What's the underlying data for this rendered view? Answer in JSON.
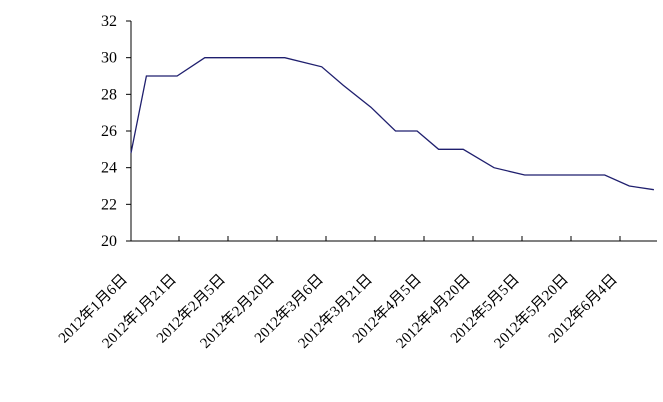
{
  "chart_data": {
    "type": "line",
    "title": "",
    "xlabel": "",
    "ylabel": "",
    "ylim": [
      20,
      32
    ],
    "yticks": [
      20,
      22,
      24,
      26,
      28,
      30,
      32
    ],
    "grid": false,
    "legend": "none",
    "line_color": "#1f1f6e",
    "x_tick_labels": [
      "2012年1月6日",
      "2012年1月21日",
      "2012年2月5日",
      "2012年2月20日",
      "2012年3月6日",
      "2012年3月21日",
      "2012年4月5日",
      "2012年4月20日",
      "2012年5月5日",
      "2012年5月20日",
      "2012年6月4日"
    ],
    "series": [
      {
        "x": [
          "2012-01-01",
          "2012-01-06",
          "2012-01-16",
          "2012-01-25",
          "2012-02-05",
          "2012-02-20",
          "2012-03-03",
          "2012-03-10",
          "2012-03-19",
          "2012-03-27",
          "2012-04-03",
          "2012-04-10",
          "2012-04-18",
          "2012-04-28",
          "2012-05-08",
          "2012-05-22",
          "2012-06-03",
          "2012-06-11",
          "2012-06-19"
        ],
        "values": [
          24.8,
          29.0,
          29.0,
          30.0,
          30.0,
          30.0,
          29.5,
          28.5,
          27.3,
          26.0,
          26.0,
          25.0,
          25.0,
          24.0,
          23.6,
          23.6,
          23.6,
          23.0,
          22.8
        ]
      }
    ]
  }
}
